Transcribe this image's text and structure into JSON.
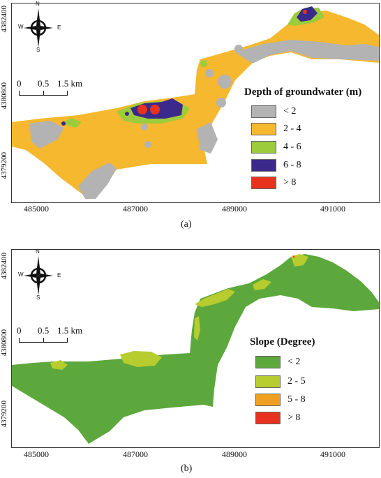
{
  "panels": [
    {
      "id": "a",
      "caption": "(a)",
      "legend": {
        "title": "Depth of groundwater (m)",
        "items": [
          {
            "label": "< 2",
            "color": "#b3b3b3"
          },
          {
            "label": "2 - 4",
            "color": "#f5b82e"
          },
          {
            "label": "4 - 6",
            "color": "#9ccc3c"
          },
          {
            "label": "6 - 8",
            "color": "#3b2a8c"
          },
          {
            "label": "> 8",
            "color": "#e8321f"
          }
        ]
      },
      "yticks": [
        "4382400",
        "4380800",
        "4379200"
      ],
      "xticks": [
        "485000",
        "487000",
        "489000",
        "491000"
      ],
      "scale": {
        "labels": [
          "0",
          "0.5",
          "1.5 km"
        ]
      },
      "compass": {
        "n": "N",
        "s": "S",
        "e": "E",
        "w": "W"
      }
    },
    {
      "id": "b",
      "caption": "(b)",
      "legend": {
        "title": "Slope (Degree)",
        "items": [
          {
            "label": "< 2",
            "color": "#5ca83c"
          },
          {
            "label": "2 - 5",
            "color": "#b7cc2e"
          },
          {
            "label": "5 - 8",
            "color": "#f0a020"
          },
          {
            "label": "> 8",
            "color": "#e8321f"
          }
        ]
      },
      "yticks": [
        "4382400",
        "4380800",
        "4379200"
      ],
      "xticks": [
        "485000",
        "487000",
        "489000",
        "491000"
      ],
      "scale": {
        "labels": [
          "0",
          "0.5",
          "1.5 km"
        ]
      },
      "compass": {
        "n": "N",
        "s": "S",
        "e": "E",
        "w": "W"
      }
    }
  ]
}
